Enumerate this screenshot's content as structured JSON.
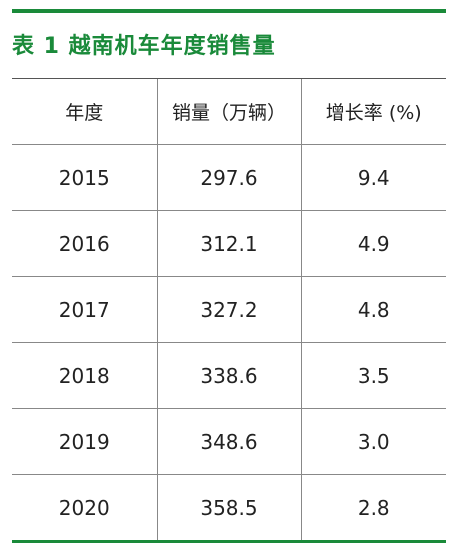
{
  "title": "表 1 越南机车年度销售量",
  "table": {
    "header": [
      "年度",
      "销量（万辆）",
      "增长率 (%)"
    ],
    "rows": [
      [
        "2015",
        "297.6",
        "9.4"
      ],
      [
        "2016",
        "312.1",
        "4.9"
      ],
      [
        "2017",
        "327.2",
        "4.8"
      ],
      [
        "2018",
        "338.6",
        "3.5"
      ],
      [
        "2019",
        "348.6",
        "3.0"
      ],
      [
        "2020",
        "358.5",
        "2.8"
      ]
    ]
  }
}
